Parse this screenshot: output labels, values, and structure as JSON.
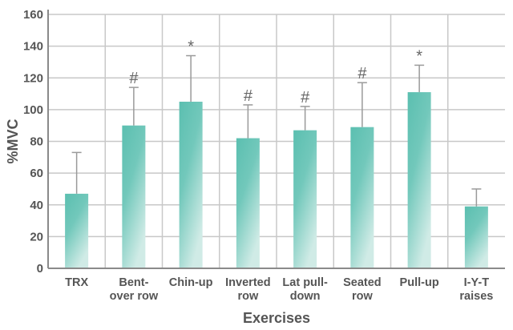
{
  "chart_data": {
    "type": "bar",
    "title": "",
    "xlabel": "Exercises",
    "ylabel": "%MVC",
    "ylim": [
      0,
      160
    ],
    "yticks": [
      0,
      20,
      40,
      60,
      80,
      100,
      120,
      140,
      160
    ],
    "grid": true,
    "categories": [
      [
        "TRX"
      ],
      [
        "Bent-",
        "over row"
      ],
      [
        "Chin-up"
      ],
      [
        "Inverted",
        "row"
      ],
      [
        "Lat pull-",
        "down"
      ],
      [
        "Seated",
        "row"
      ],
      [
        "Pull-up"
      ],
      [
        "I-Y-T",
        "raises"
      ]
    ],
    "series": [
      {
        "values": [
          47,
          90,
          105,
          82,
          87,
          89,
          111,
          39
        ],
        "error_upper": [
          73,
          114,
          134,
          103,
          102,
          117,
          128,
          50
        ],
        "markers": [
          "",
          "#",
          "*",
          "#",
          "#",
          "#",
          "*",
          ""
        ]
      }
    ],
    "colors": {
      "bar_dark": "#5bbfb0",
      "bar_light": "#d0ebe6",
      "grid": "#c8c8c8",
      "axis": "#8a8a8a",
      "error_bar": "#9a9a9a",
      "text": "#555555"
    }
  }
}
